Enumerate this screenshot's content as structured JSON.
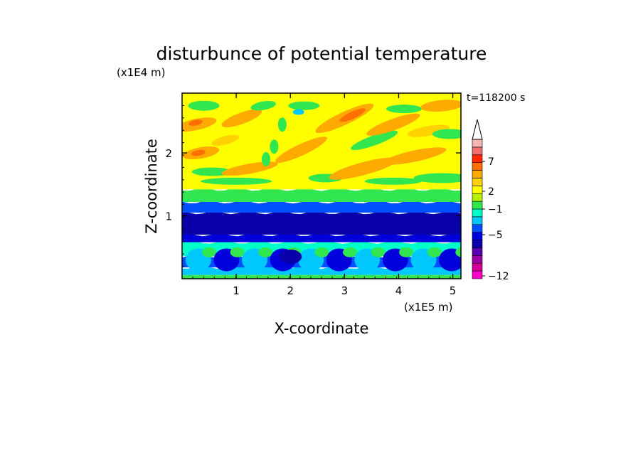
{
  "chart_data": {
    "type": "heatmap",
    "title": "disturbunce of potential temperature",
    "xlabel": "X-coordinate",
    "ylabel": "Z-coordinate",
    "x_unit": "(x1E5 m)",
    "y_unit": "(x1E4 m)",
    "time_label": "t=118200 s",
    "xlim": [
      0,
      5.15
    ],
    "ylim": [
      0,
      2.95
    ],
    "x_ticks": [
      1,
      2,
      3,
      4,
      5
    ],
    "y_ticks": [
      1,
      2
    ],
    "colorbar": {
      "labels": [
        "7",
        "2",
        "−1",
        "−5",
        "−12"
      ],
      "colors": [
        "#ff00c8",
        "#d20096",
        "#9b00a5",
        "#5a00b4",
        "#0a00aa",
        "#0000dc",
        "#0050ff",
        "#00c8ff",
        "#00ffc8",
        "#32e650",
        "#b4f000",
        "#ffff00",
        "#ffd200",
        "#ffaa00",
        "#ff6e00",
        "#ff2800",
        "#f06e6e",
        "#f5b4b4"
      ]
    },
    "bands": [
      {
        "z_bottom": 0.0,
        "z_top": 0.06,
        "value": 0.5,
        "color": "#32e650"
      },
      {
        "z_bottom": 0.06,
        "z_top": 0.18,
        "value": -2,
        "color": "#00c8ff"
      },
      {
        "z_bottom": 0.18,
        "z_top": 0.36,
        "value": -3,
        "color": "#0050ff"
      },
      {
        "z_bottom": 0.36,
        "z_top": 0.58,
        "value": -2,
        "color": "#00ffc8"
      },
      {
        "z_bottom": 0.58,
        "z_top": 0.7,
        "value": -4,
        "color": "#0000dc"
      },
      {
        "z_bottom": 0.7,
        "z_top": 1.05,
        "value": -5,
        "color": "#0a00aa"
      },
      {
        "z_bottom": 1.05,
        "z_top": 1.22,
        "value": -3,
        "color": "#0050ff"
      },
      {
        "z_bottom": 1.22,
        "z_top": 1.42,
        "value": 0,
        "color": "#32e650"
      },
      {
        "z_bottom": 1.42,
        "z_top": 2.95,
        "value": 1.5,
        "color": "#ffff00"
      }
    ]
  }
}
